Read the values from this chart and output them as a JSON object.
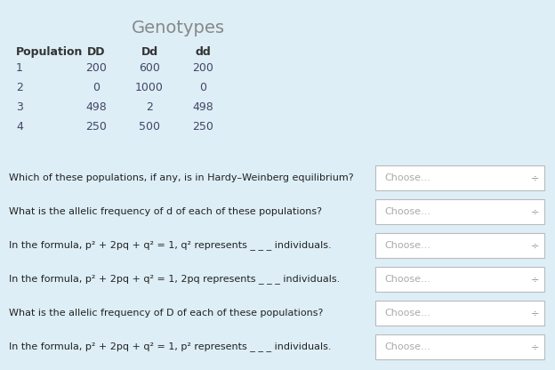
{
  "bg_color": "#ddeef6",
  "title": "Genotypes",
  "title_color": "#888888",
  "title_fontsize": 14,
  "col_headers": [
    "Population",
    "DD",
    "Dd",
    "dd"
  ],
  "table_data": [
    [
      "1",
      "200",
      "600",
      "200"
    ],
    [
      "2",
      "0",
      "1000",
      "0"
    ],
    [
      "3",
      "498",
      "2",
      "498"
    ],
    [
      "4",
      "250",
      "500",
      "250"
    ]
  ],
  "header_color": "#333333",
  "data_color": "#444466",
  "questions": [
    "Which of these populations, if any, is in Hardy–Weinberg equilibrium?",
    "What is the allelic frequency of d of each of these populations?",
    "In the formula, p² + 2pq + q² = 1, q² represents _ _ _ individuals.",
    "In the formula, p² + 2pq + q² = 1, 2pq represents _ _ _ individuals.",
    "What is the allelic frequency of D of each of these populations?",
    "In the formula, p² + 2pq + q² = 1, p² represents _ _ _ individuals."
  ],
  "question_color": "#222222",
  "dropdown_label": "Choose...",
  "dropdown_text_color": "#aaaaaa",
  "dropdown_bg": "#ffffff",
  "dropdown_border": "#bbbbbb",
  "arrow_color": "#888888"
}
